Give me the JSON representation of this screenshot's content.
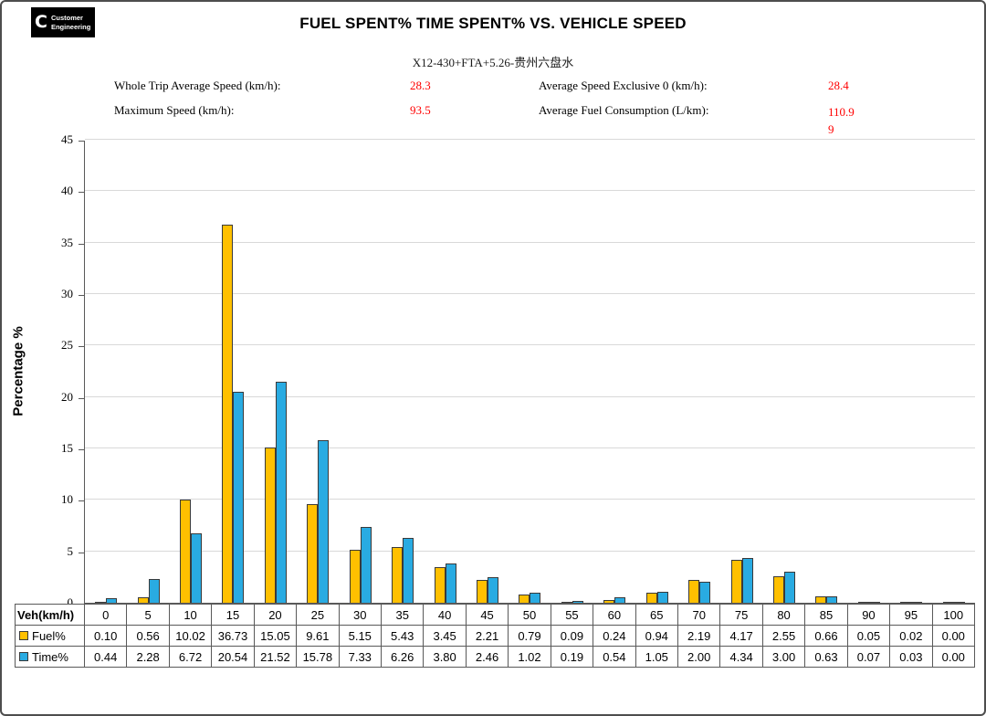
{
  "logo": {
    "brand": "C",
    "line1": "Customer",
    "line2": "Engineering"
  },
  "title": "FUEL SPENT% TIME SPENT% VS. VEHICLE SPEED",
  "subtitle": "X12-430+FTA+5.26-贵州六盘水",
  "stats": [
    {
      "label": "Whole Trip Average Speed (km/h):",
      "value": "28.3"
    },
    {
      "label": "Average Speed Exclusive 0 (km/h):",
      "value": "28.4"
    },
    {
      "label": "Maximum Speed (km/h):",
      "value": "93.5"
    },
    {
      "label": "Average Fuel Consumption (L/km):",
      "value": "110.99"
    }
  ],
  "colors": {
    "fuel": "#FFC000",
    "time": "#29ABE2",
    "stat_value": "#FF0000",
    "gridline": "#D9D9D9"
  },
  "chart_data": {
    "type": "bar",
    "title": "FUEL SPENT% TIME SPENT% VS. VEHICLE SPEED",
    "subtitle": "X12-430+FTA+5.26-贵州六盘水",
    "xlabel": "Veh(km/h)",
    "ylabel": "Percentage %",
    "ylim": [
      0,
      45
    ],
    "ytick_step": 5,
    "grid": true,
    "legend_position": "table-left",
    "categories": [
      "0",
      "5",
      "10",
      "15",
      "20",
      "25",
      "30",
      "35",
      "40",
      "45",
      "50",
      "55",
      "60",
      "65",
      "70",
      "75",
      "80",
      "85",
      "90",
      "95",
      "100"
    ],
    "series": [
      {
        "name": "Fuel%",
        "color": "#FFC000",
        "values": [
          0.1,
          0.56,
          10.02,
          36.73,
          15.05,
          9.61,
          5.15,
          5.43,
          3.45,
          2.21,
          0.79,
          0.09,
          0.24,
          0.94,
          2.19,
          4.17,
          2.55,
          0.66,
          0.05,
          0.02,
          0.0
        ]
      },
      {
        "name": "Time%",
        "color": "#29ABE2",
        "values": [
          0.44,
          2.28,
          6.72,
          20.54,
          21.52,
          15.78,
          7.33,
          6.26,
          3.8,
          2.46,
          1.02,
          0.19,
          0.54,
          1.05,
          2.0,
          4.34,
          3.0,
          0.63,
          0.07,
          0.03,
          0.0
        ]
      }
    ]
  }
}
